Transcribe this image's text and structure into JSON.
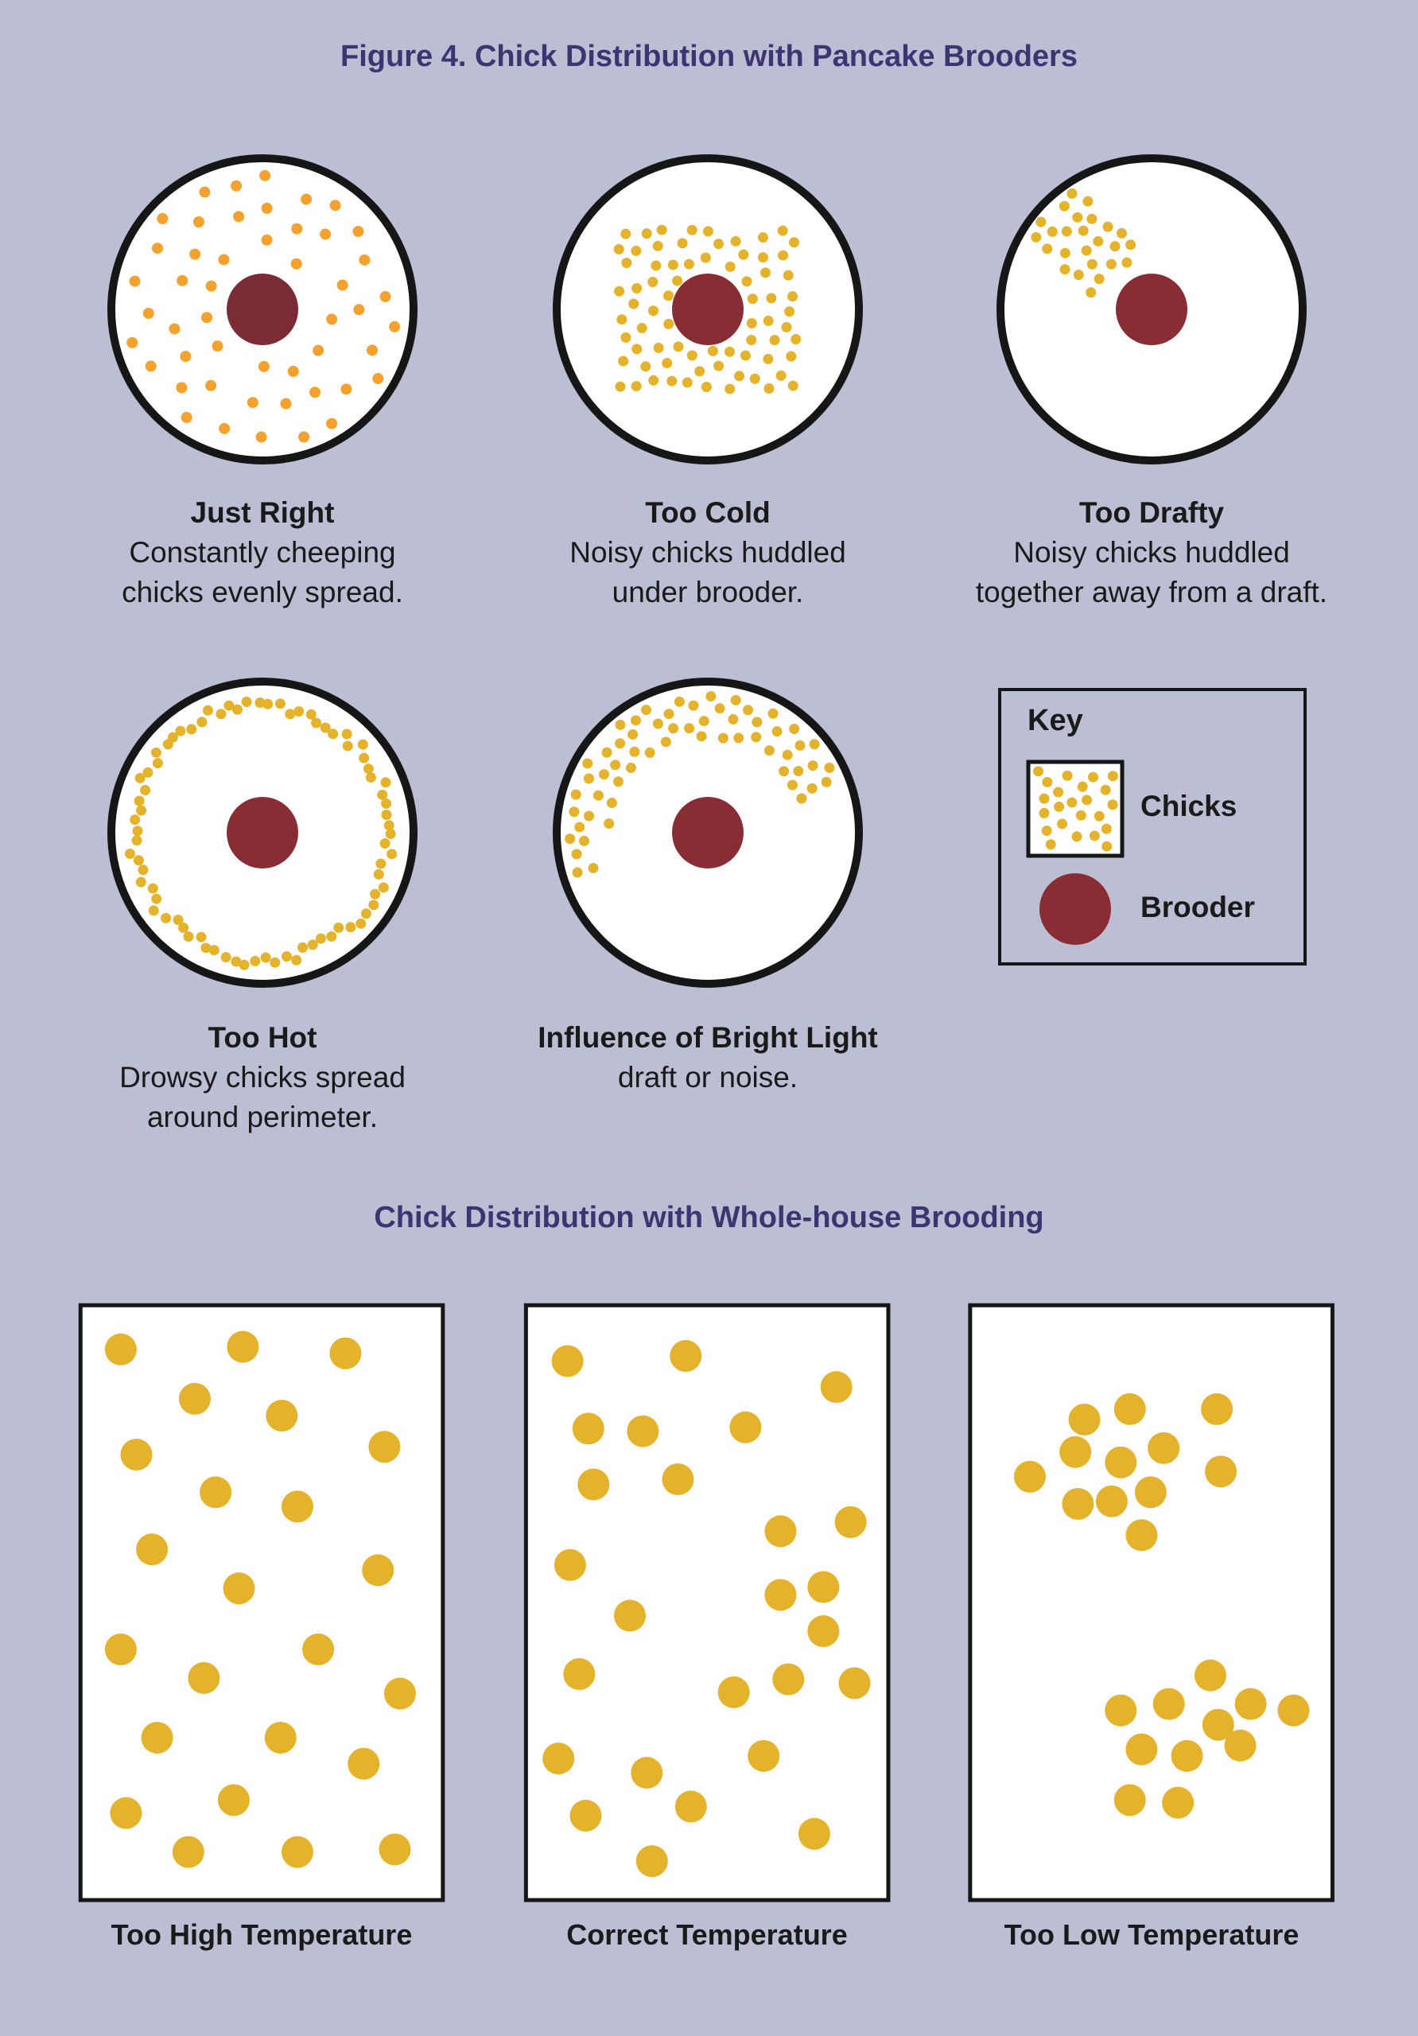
{
  "title": "Figure 4. Chick Distribution with Pancake Brooders",
  "pancake_panels": [
    {
      "title": "Just Right",
      "lines": [
        "Constantly cheeping",
        "chicks evenly spread."
      ]
    },
    {
      "title": "Too Cold",
      "lines": [
        "Noisy chicks huddled",
        "under brooder."
      ]
    },
    {
      "title": "Too Drafty",
      "lines": [
        "Noisy chicks huddled",
        "together away from a draft."
      ]
    },
    {
      "title": "Too Hot",
      "lines": [
        "Drowsy chicks spread",
        "around perimeter."
      ]
    },
    {
      "title": "Influence of Bright Light",
      "lines": [
        "draft or noise."
      ]
    }
  ],
  "key": {
    "title": "Key",
    "chicks": "Chicks",
    "brooder": "Brooder"
  },
  "subtitle": "Chick Distribution with Whole-house Brooding",
  "whole_house_panels": [
    "Too High Temperature",
    "Correct Temperature",
    "Too Low Temperature"
  ],
  "colors": {
    "background": "#bcbfd4",
    "heading": "#3c3572",
    "chick": "#e5b22b",
    "chick_even": "#f4a12d",
    "brooder": "#892d34"
  }
}
